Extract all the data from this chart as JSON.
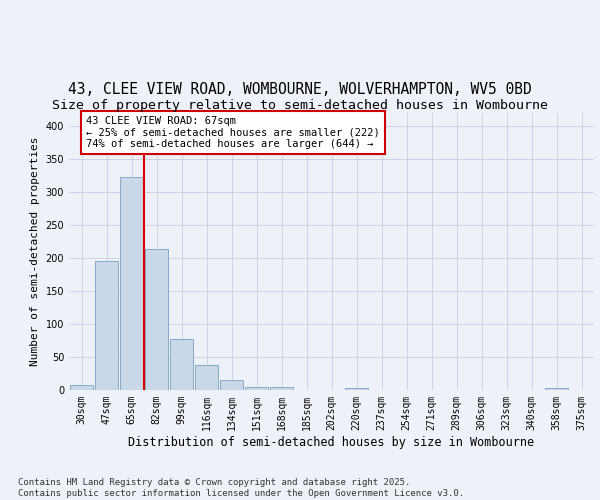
{
  "title1": "43, CLEE VIEW ROAD, WOMBOURNE, WOLVERHAMPTON, WV5 0BD",
  "title2": "Size of property relative to semi-detached houses in Wombourne",
  "xlabel": "Distribution of semi-detached houses by size in Wombourne",
  "ylabel": "Number of semi-detached properties",
  "categories": [
    "30sqm",
    "47sqm",
    "65sqm",
    "82sqm",
    "99sqm",
    "116sqm",
    "134sqm",
    "151sqm",
    "168sqm",
    "185sqm",
    "202sqm",
    "220sqm",
    "237sqm",
    "254sqm",
    "271sqm",
    "289sqm",
    "306sqm",
    "323sqm",
    "340sqm",
    "358sqm",
    "375sqm"
  ],
  "values": [
    8,
    196,
    322,
    213,
    77,
    38,
    15,
    5,
    5,
    0,
    0,
    3,
    0,
    0,
    0,
    0,
    0,
    0,
    0,
    3,
    0
  ],
  "bar_color": "#c8d8e8",
  "bar_edge_color": "#7aA0c0",
  "grid_color": "#c8cce0",
  "background_color": "#eef2f8",
  "red_line_x": 2.5,
  "annotation_text": "43 CLEE VIEW ROAD: 67sqm\n← 25% of semi-detached houses are smaller (222)\n74% of semi-detached houses are larger (644) →",
  "annotation_box_color": "#ffffff",
  "annotation_box_edge": "#cc0000",
  "red_line_color": "#dd0000",
  "footer": "Contains HM Land Registry data © Crown copyright and database right 2025.\nContains public sector information licensed under the Open Government Licence v3.0.",
  "ylim": [
    0,
    420
  ],
  "yticks": [
    0,
    50,
    100,
    150,
    200,
    250,
    300,
    350,
    400
  ],
  "title1_fontsize": 10.5,
  "title2_fontsize": 9.5,
  "xlabel_fontsize": 8.5,
  "ylabel_fontsize": 8,
  "tick_fontsize": 7,
  "annotation_fontsize": 7.5,
  "footer_fontsize": 6.5
}
